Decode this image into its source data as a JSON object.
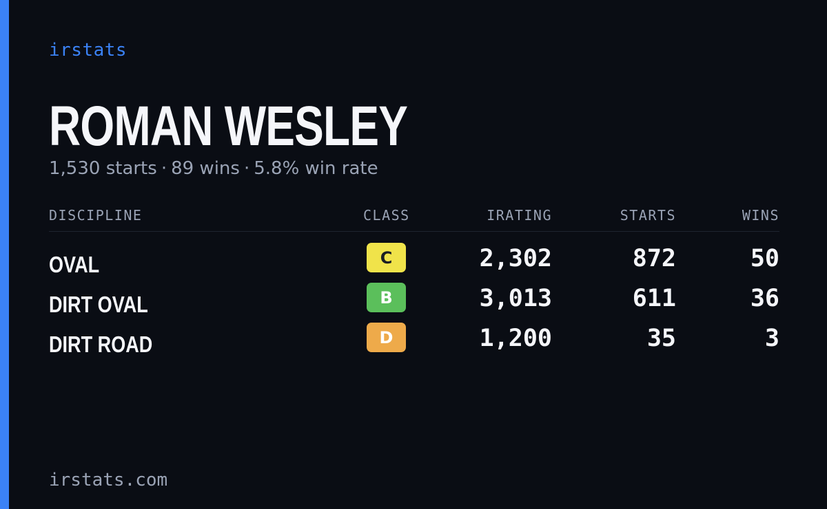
{
  "brand": "irstats",
  "driver": {
    "name": "ROMAN WESLEY",
    "summary": {
      "starts": "1,530 starts",
      "wins": "89 wins",
      "win_rate": "5.8% win rate",
      "separator": "·"
    }
  },
  "table": {
    "headers": {
      "discipline": "DISCIPLINE",
      "class": "CLASS",
      "irating": "IRATING",
      "starts": "STARTS",
      "wins": "WINS"
    },
    "rows": [
      {
        "discipline": "OVAL",
        "class": "C",
        "class_color": "#f0e34a",
        "irating": "2,302",
        "starts": "872",
        "wins": "50"
      },
      {
        "discipline": "DIRT OVAL",
        "class": "B",
        "class_color": "#5bbf5b",
        "irating": "3,013",
        "starts": "611",
        "wins": "36"
      },
      {
        "discipline": "DIRT ROAD",
        "class": "D",
        "class_color": "#eeaa4a",
        "irating": "1,200",
        "starts": "35",
        "wins": "3"
      }
    ]
  },
  "footer": "irstats.com",
  "colors": {
    "accent": "#3b82f6",
    "background": "#0a0d14",
    "muted_text": "#9aa3b5",
    "primary_text": "#f5f6fa"
  }
}
